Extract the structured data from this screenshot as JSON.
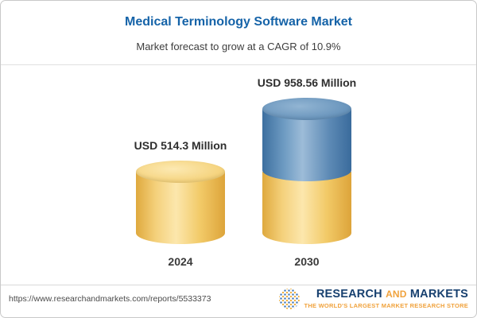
{
  "header": {
    "title": "Medical Terminology Software Market",
    "subtitle": "Market forecast to grow at a CAGR of 10.9%"
  },
  "chart_data": {
    "type": "bar",
    "categories": [
      "2024",
      "2030"
    ],
    "values": [
      514.3,
      958.56
    ],
    "value_labels": [
      "USD 514.3 Million",
      "USD 958.56 Million"
    ],
    "unit": "USD Million",
    "title": "Medical Terminology Software Market",
    "subtitle": "Market forecast to grow at a CAGR of 10.9%",
    "cagr": "10.9%",
    "ylim": [
      0,
      1000
    ],
    "legend_position": "none",
    "grid": false,
    "series_note": "2030 cylinder = 2024 base value (yellow) plus growth to 2030 (blue top segment)",
    "colors": {
      "base_yellow": "#F2C966",
      "growth_blue": "#4E81B1",
      "title_blue": "#1563A8",
      "tagline_orange": "#F0A23C",
      "logo_navy": "#17406F"
    }
  },
  "footer": {
    "url": "https://www.researchandmarkets.com/reports/5533373",
    "logo": {
      "research": "RESEARCH",
      "and": "AND",
      "markets": "MARKETS",
      "tagline": "THE WORLD'S LARGEST MARKET RESEARCH STORE"
    }
  }
}
